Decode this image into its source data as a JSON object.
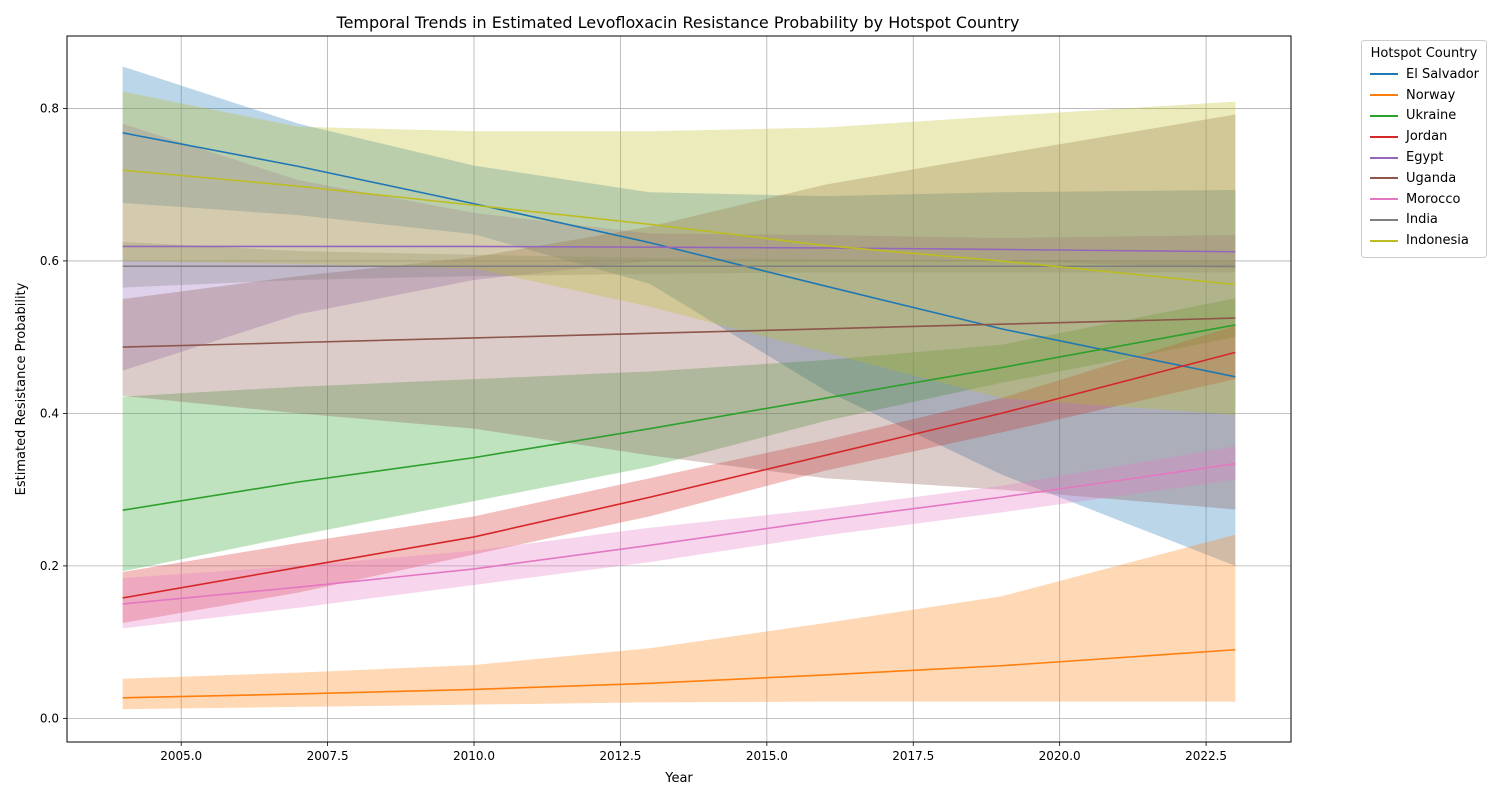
{
  "chart_data": {
    "type": "line",
    "title": "Temporal Trends in Estimated Levofloxacin Resistance Probability by Hotspot Country",
    "xlabel": "Year",
    "ylabel": "Estimated Resistance Probability",
    "xlim": [
      2003.05,
      2023.95
    ],
    "ylim": [
      -0.031,
      0.895
    ],
    "xticks": [
      2005.0,
      2007.5,
      2010.0,
      2012.5,
      2015.0,
      2017.5,
      2020.0,
      2022.5
    ],
    "xtick_labels": [
      "2005.0",
      "2007.5",
      "2010.0",
      "2012.5",
      "2015.0",
      "2017.5",
      "2020.0",
      "2022.5"
    ],
    "yticks": [
      0.0,
      0.2,
      0.4,
      0.6,
      0.8
    ],
    "ytick_labels": [
      "0.0",
      "0.2",
      "0.4",
      "0.6",
      "0.8"
    ],
    "grid": true,
    "legend_title": "Hotspot Country",
    "legend_position": "outside-top-right",
    "x": [
      2004,
      2007,
      2010,
      2013,
      2016,
      2019,
      2023
    ],
    "series": [
      {
        "name": "El Salvador",
        "color": "#1f77b4",
        "values": [
          0.768,
          0.724,
          0.675,
          0.624,
          0.567,
          0.511,
          0.448
        ],
        "lower": [
          0.676,
          0.66,
          0.635,
          0.57,
          0.43,
          0.32,
          0.2
        ],
        "upper": [
          0.855,
          0.78,
          0.725,
          0.69,
          0.685,
          0.69,
          0.693
        ]
      },
      {
        "name": "Norway",
        "color": "#ff7f0e",
        "values": [
          0.027,
          0.032,
          0.038,
          0.046,
          0.057,
          0.069,
          0.09
        ],
        "lower": [
          0.012,
          0.015,
          0.018,
          0.021,
          0.022,
          0.022,
          0.022
        ],
        "upper": [
          0.052,
          0.06,
          0.07,
          0.092,
          0.125,
          0.16,
          0.241
        ]
      },
      {
        "name": "Ukraine",
        "color": "#2ca02c",
        "values": [
          0.273,
          0.31,
          0.342,
          0.38,
          0.42,
          0.46,
          0.516
        ],
        "lower": [
          0.193,
          0.24,
          0.285,
          0.33,
          0.39,
          0.44,
          0.5
        ],
        "upper": [
          0.422,
          0.435,
          0.445,
          0.455,
          0.47,
          0.49,
          0.551
        ]
      },
      {
        "name": "Jordan",
        "color": "#d62728",
        "values": [
          0.158,
          0.198,
          0.238,
          0.29,
          0.345,
          0.4,
          0.48
        ],
        "lower": [
          0.125,
          0.165,
          0.215,
          0.265,
          0.325,
          0.375,
          0.445
        ],
        "upper": [
          0.192,
          0.23,
          0.265,
          0.315,
          0.365,
          0.42,
          0.515
        ]
      },
      {
        "name": "Egypt",
        "color": "#9467bd",
        "values": [
          0.619,
          0.619,
          0.619,
          0.618,
          0.617,
          0.615,
          0.612
        ],
        "lower": [
          0.456,
          0.53,
          0.575,
          0.6,
          0.6,
          0.6,
          0.59
        ],
        "upper": [
          0.78,
          0.706,
          0.663,
          0.636,
          0.634,
          0.63,
          0.634
        ]
      },
      {
        "name": "Uganda",
        "color": "#8c564b",
        "values": [
          0.487,
          0.493,
          0.499,
          0.505,
          0.511,
          0.517,
          0.525
        ],
        "lower": [
          0.423,
          0.4,
          0.38,
          0.345,
          0.315,
          0.3,
          0.274
        ],
        "upper": [
          0.55,
          0.58,
          0.605,
          0.645,
          0.7,
          0.74,
          0.792
        ]
      },
      {
        "name": "Morocco",
        "color": "#e377c2",
        "values": [
          0.15,
          0.172,
          0.196,
          0.227,
          0.26,
          0.29,
          0.334
        ],
        "lower": [
          0.118,
          0.145,
          0.175,
          0.205,
          0.24,
          0.27,
          0.313
        ],
        "upper": [
          0.184,
          0.2,
          0.22,
          0.25,
          0.275,
          0.305,
          0.357
        ]
      },
      {
        "name": "India",
        "color": "#7f7f7f",
        "values": [
          0.593,
          0.593,
          0.593,
          0.593,
          0.593,
          0.593,
          0.593
        ],
        "lower": [
          0.565,
          0.575,
          0.58,
          0.583,
          0.585,
          0.585,
          0.585
        ],
        "upper": [
          0.625,
          0.613,
          0.608,
          0.604,
          0.602,
          0.601,
          0.601
        ]
      },
      {
        "name": "Indonesia",
        "color": "#bcbd22",
        "values": [
          0.719,
          0.698,
          0.673,
          0.648,
          0.62,
          0.6,
          0.569
        ],
        "lower": [
          0.6,
          0.596,
          0.59,
          0.54,
          0.48,
          0.42,
          0.398
        ],
        "upper": [
          0.822,
          0.776,
          0.77,
          0.77,
          0.775,
          0.79,
          0.809
        ]
      }
    ]
  }
}
